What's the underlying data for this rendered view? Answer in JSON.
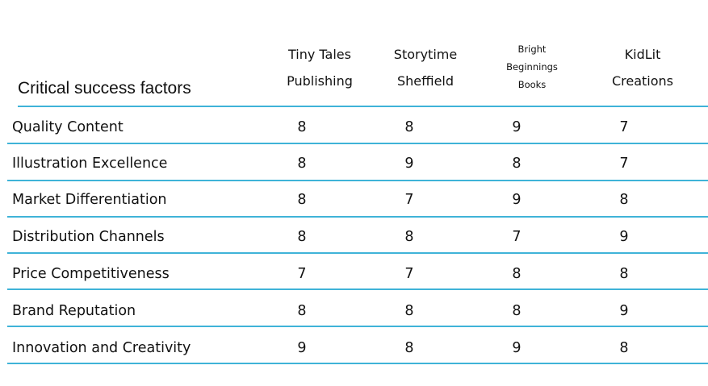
{
  "chart_data": {
    "type": "table",
    "title": "Critical success factors",
    "columns": [
      {
        "lines": [
          "Tiny Tales",
          "Publishing"
        ]
      },
      {
        "lines": [
          "Storytime",
          "Sheffield"
        ]
      },
      {
        "lines": [
          "Bright",
          "Beginnings",
          "Books"
        ]
      },
      {
        "lines": [
          "KidLit",
          "Creations"
        ]
      }
    ],
    "rows": [
      {
        "label": "Quality Content",
        "values": [
          8,
          8,
          9,
          7
        ]
      },
      {
        "label": "Illustration Excellence",
        "values": [
          8,
          9,
          8,
          7
        ]
      },
      {
        "label": "Market Differentiation",
        "values": [
          8,
          7,
          9,
          8
        ]
      },
      {
        "label": "Distribution Channels",
        "values": [
          8,
          8,
          7,
          9
        ]
      },
      {
        "label": "Price Competitiveness",
        "values": [
          7,
          7,
          8,
          8
        ]
      },
      {
        "label": "Brand Reputation",
        "values": [
          8,
          8,
          8,
          9
        ]
      },
      {
        "label": "Innovation and Creativity",
        "values": [
          9,
          8,
          9,
          8
        ]
      }
    ],
    "colors": {
      "rule": "#3fb3d8",
      "text": "#111111"
    }
  }
}
